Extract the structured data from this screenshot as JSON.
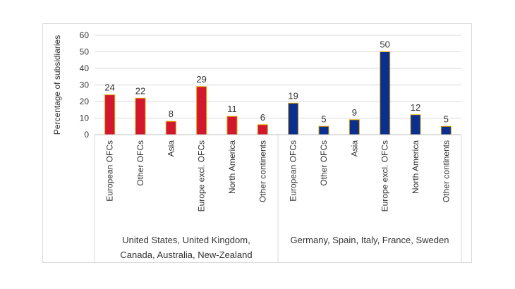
{
  "chart_data": {
    "type": "bar",
    "ylabel": "Percentage of subsidiaries",
    "ylim": [
      0,
      60
    ],
    "yticks": [
      0,
      10,
      20,
      30,
      40,
      50,
      60
    ],
    "grid": true,
    "categories": [
      "European OFCs",
      "Other OFCs",
      "Asia",
      "Europe excl. OFCs",
      "North America",
      "Other continents",
      "European OFCs",
      "Other OFCs",
      "Asia",
      "Europe excl. OFCs",
      "North America",
      "Other continents"
    ],
    "groups": [
      {
        "label_lines": [
          "United States, United Kingdom,",
          "Canada, Australia, New-Zealand"
        ],
        "color": "#d2172f",
        "categories": [
          "European OFCs",
          "Other OFCs",
          "Asia",
          "Europe excl. OFCs",
          "North America",
          "Other continents"
        ],
        "values": [
          24,
          22,
          8,
          29,
          11,
          6
        ]
      },
      {
        "label_lines": [
          "Germany, Spain, Italy, France, Sweden"
        ],
        "color": "#0b2f8f",
        "categories": [
          "European OFCs",
          "Other OFCs",
          "Asia",
          "Europe excl. OFCs",
          "North America",
          "Other continents"
        ],
        "values": [
          19,
          5,
          9,
          50,
          12,
          5
        ]
      }
    ]
  }
}
